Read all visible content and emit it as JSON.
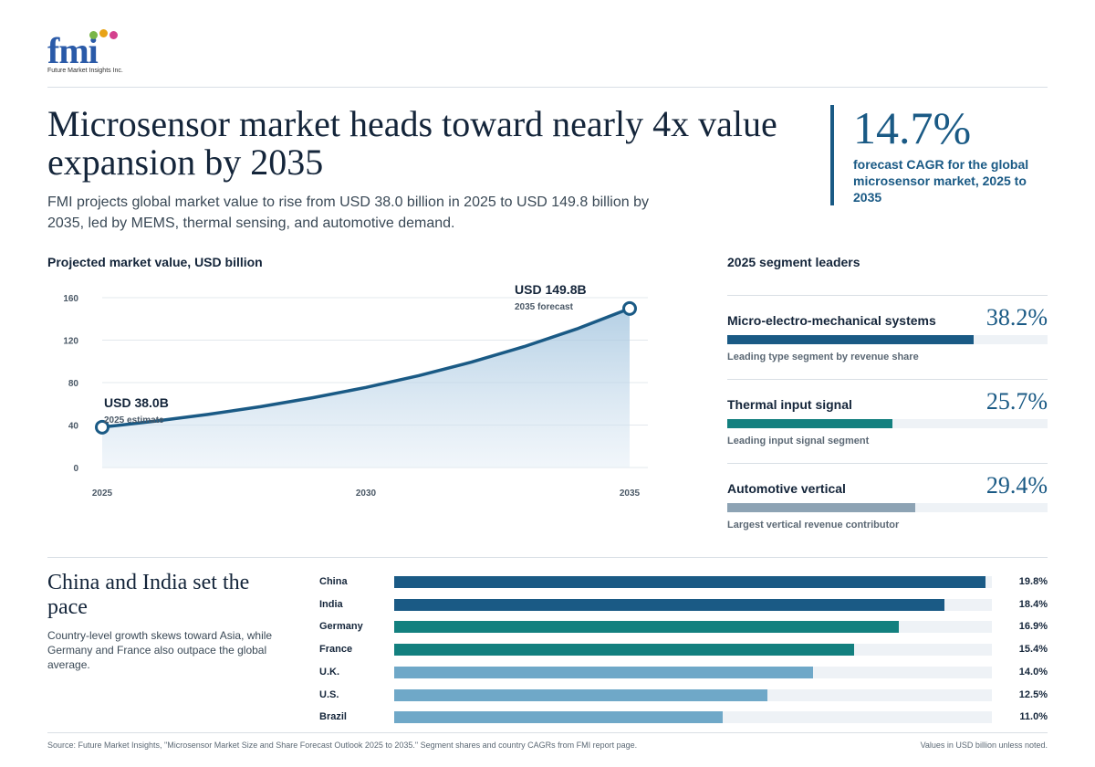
{
  "brand": {
    "logo_text": "fmi",
    "logo_subtitle": "Future Market Insights Inc.",
    "dot_colors": [
      "#7ab648",
      "#e8a317",
      "#d4418e",
      "#7a4fb0"
    ]
  },
  "headline": "Microsensor market heads toward nearly 4x value expansion by 2035",
  "dek": "FMI projects global market value to rise from USD 38.0 billion in 2025 to USD 149.8 billion by 2035, led by MEMS, thermal sensing, and automotive demand.",
  "kpi": {
    "value": "14.7%",
    "label": "forecast CAGR for the global microsensor market, 2025 to 2035"
  },
  "colors": {
    "navy": "#1a5a85",
    "teal": "#13807f",
    "slate": "#8da3b4",
    "light_blue": "#6fa8c8"
  },
  "chart_data": {
    "type": "area",
    "title": "Projected market value, USD billion",
    "x": [
      2025,
      2026,
      2027,
      2028,
      2029,
      2030,
      2031,
      2032,
      2033,
      2034,
      2035
    ],
    "y": [
      38.0,
      43.6,
      50.0,
      57.3,
      65.8,
      75.4,
      86.5,
      99.3,
      113.9,
      130.6,
      149.8
    ],
    "xticks": [
      "2025",
      "2030",
      "2035"
    ],
    "yticks": [
      "0",
      "40",
      "80",
      "120",
      "160"
    ],
    "xlim": [
      2025,
      2035
    ],
    "ylim": [
      0,
      160
    ],
    "grid": true,
    "annotations": [
      {
        "x": 2025,
        "y": 38.0,
        "label": "USD 38.0B",
        "sub": "2025 estimate"
      },
      {
        "x": 2035,
        "y": 149.8,
        "label": "USD 149.8B",
        "sub": "2035 forecast"
      }
    ]
  },
  "segments": {
    "title": "2025 segment leaders",
    "items": [
      {
        "name": "Micro-electro-mechanical systems",
        "value_label": "38.2%",
        "share": 0.768,
        "color": "#1a5a85",
        "desc": "Leading type segment by revenue share"
      },
      {
        "name": "Thermal input signal",
        "value_label": "25.7%",
        "share": 0.516,
        "color": "#13807f",
        "desc": "Leading input signal segment"
      },
      {
        "name": "Automotive vertical",
        "value_label": "29.4%",
        "share": 0.588,
        "color": "#8da3b4",
        "desc": "Largest vertical revenue contributor"
      }
    ]
  },
  "countries": {
    "title": "China and India set the pace",
    "dek": "Country-level growth skews toward Asia, while Germany and France also outpace the global average.",
    "max": 20.0,
    "items": [
      {
        "name": "China",
        "value": 19.8,
        "label": "19.8%",
        "color": "#1a5a85"
      },
      {
        "name": "India",
        "value": 18.4,
        "label": "18.4%",
        "color": "#1a5a85"
      },
      {
        "name": "Germany",
        "value": 16.9,
        "label": "16.9%",
        "color": "#13807f"
      },
      {
        "name": "France",
        "value": 15.4,
        "label": "15.4%",
        "color": "#13807f"
      },
      {
        "name": "U.K.",
        "value": 14.0,
        "label": "14.0%",
        "color": "#6fa8c8"
      },
      {
        "name": "U.S.",
        "value": 12.5,
        "label": "12.5%",
        "color": "#6fa8c8"
      },
      {
        "name": "Brazil",
        "value": 11.0,
        "label": "11.0%",
        "color": "#6fa8c8"
      }
    ]
  },
  "footer": {
    "source": "Source: Future Market Insights, \"Microsensor Market Size and Share Forecast Outlook 2025 to 2035.\" Segment shares and country CAGRs from FMI report page.",
    "units": "Values in USD billion unless noted."
  }
}
